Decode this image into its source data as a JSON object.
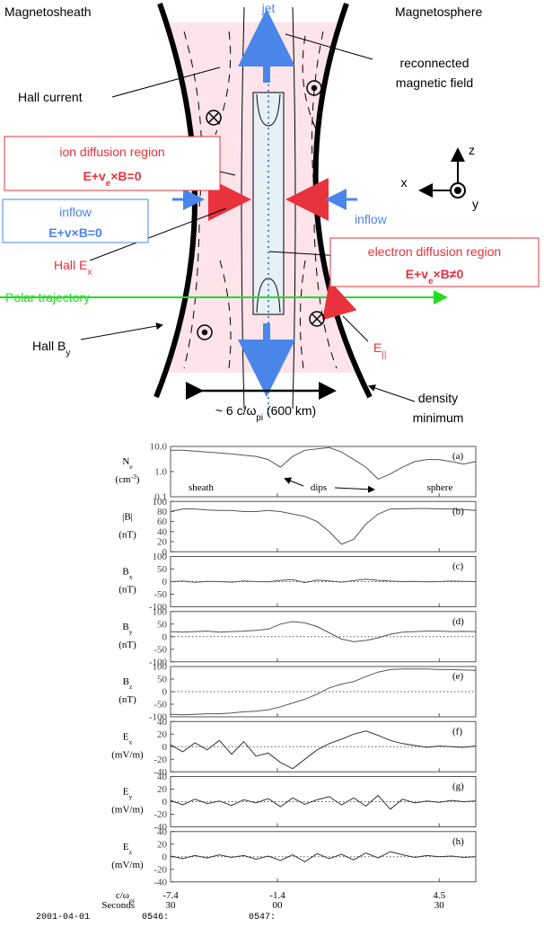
{
  "diagram": {
    "magnetosheath": "Magnetosheath",
    "magnetosphere": "Magnetosphere",
    "jet": "jet",
    "reconnected_field": [
      "reconnected",
      "magnetic field"
    ],
    "hall_current": "Hall current",
    "ion_region": {
      "title": "ion diffusion region",
      "equation": {
        "t": "E+v",
        "sub": "e",
        "post": "×B=0"
      }
    },
    "inflow_left": {
      "title": "inflow",
      "equation": {
        "t": "E+v×B=0"
      }
    },
    "inflow_right": "inflow",
    "hall_ex": {
      "t": "Hall E",
      "sub": "x"
    },
    "electron_region": {
      "title": "electron diffusion region",
      "equation": {
        "t": "E+v",
        "sub": "e",
        "post": "×B≠0"
      }
    },
    "polar_trajectory": "Polar trajectory",
    "hall_by": {
      "t": "Hall B",
      "sub": "y"
    },
    "e_parallel": {
      "t": "E",
      "sub": "||"
    },
    "width": {
      "t": "~ 6 c/ω",
      "sub": "pi",
      "post": " (600 km)"
    },
    "density_minimum": [
      "density",
      "minimum"
    ],
    "axes": {
      "x": "x",
      "y": "y",
      "z": "z"
    }
  },
  "chart_data": [
    {
      "type": "line",
      "tag": "(a)",
      "ylabel": {
        "t": "N",
        "sub": "e"
      },
      "unit": {
        "t": "(cm",
        "sup": "-3",
        "post": ")"
      },
      "log": true,
      "ylim": [
        0.1,
        10
      ],
      "yticks": [
        {
          "value": 0.1,
          "label": "0.1"
        },
        {
          "value": 1,
          "label": "1.0"
        },
        {
          "value": 10,
          "label": "10.0"
        }
      ],
      "xlim": [
        0,
        100
      ],
      "color": "#555555",
      "zero_line": false,
      "annotations": [
        "sheath",
        "dips",
        "sphere"
      ],
      "x": [
        0,
        4,
        8,
        12,
        16,
        20,
        24,
        28,
        32,
        36,
        40,
        44,
        48,
        52,
        56,
        60,
        64,
        68,
        72,
        76,
        80,
        84,
        88,
        92,
        96,
        100
      ],
      "values": [
        7,
        7,
        6.5,
        6,
        5.5,
        5,
        4.5,
        4,
        3,
        1.5,
        4,
        7,
        8,
        9,
        6,
        3,
        1.5,
        0.5,
        0.8,
        1.5,
        2.5,
        3,
        3,
        2.5,
        2,
        2.5
      ]
    },
    {
      "type": "line",
      "tag": "(b)",
      "ylabel": {
        "t": "|B|"
      },
      "unit": "(nT)",
      "ylim": [
        0,
        100
      ],
      "yticks": [
        0,
        20,
        40,
        60,
        80,
        100
      ],
      "xlim": [
        0,
        100
      ],
      "color": "#555555",
      "zero_line": false,
      "x": [
        0,
        4,
        8,
        12,
        16,
        20,
        24,
        28,
        32,
        36,
        40,
        44,
        48,
        52,
        56,
        60,
        64,
        68,
        72,
        76,
        80,
        84,
        88,
        92,
        96,
        100
      ],
      "values": [
        80,
        85,
        85,
        83,
        82,
        82,
        80,
        80,
        82,
        80,
        75,
        70,
        60,
        40,
        15,
        25,
        55,
        75,
        85,
        85,
        86,
        86,
        85,
        85,
        84,
        82
      ]
    },
    {
      "type": "line",
      "tag": "(c)",
      "ylabel": {
        "t": "B",
        "sub": "x"
      },
      "unit": "(nT)",
      "ylim": [
        -100,
        100
      ],
      "yticks": [
        -100,
        -50,
        0,
        50,
        100
      ],
      "xlim": [
        0,
        100
      ],
      "color": "#555555",
      "zero_line": true,
      "x": [
        0,
        4,
        8,
        12,
        16,
        20,
        24,
        28,
        32,
        36,
        40,
        44,
        48,
        52,
        56,
        60,
        64,
        68,
        72,
        76,
        80,
        84,
        88,
        92,
        96,
        100
      ],
      "values": [
        0,
        2,
        -3,
        1,
        0,
        -2,
        3,
        0,
        -1,
        5,
        8,
        -4,
        6,
        3,
        -2,
        4,
        10,
        5,
        2,
        0,
        1,
        -1,
        0,
        2,
        1,
        0
      ]
    },
    {
      "type": "line",
      "tag": "(d)",
      "ylabel": {
        "t": "B",
        "sub": "y"
      },
      "unit": "(nT)",
      "ylim": [
        -100,
        100
      ],
      "yticks": [
        -100,
        -50,
        0,
        50,
        100
      ],
      "xlim": [
        0,
        100
      ],
      "color": "#555555",
      "zero_line": true,
      "x": [
        0,
        4,
        8,
        12,
        16,
        20,
        24,
        28,
        32,
        36,
        40,
        44,
        48,
        52,
        56,
        60,
        64,
        68,
        72,
        76,
        80,
        84,
        88,
        92,
        96,
        100
      ],
      "values": [
        20,
        18,
        20,
        22,
        18,
        20,
        22,
        25,
        30,
        50,
        60,
        55,
        40,
        15,
        -10,
        -20,
        -15,
        -5,
        10,
        18,
        20,
        22,
        22,
        20,
        21,
        20
      ]
    },
    {
      "type": "line",
      "tag": "(e)",
      "ylabel": {
        "t": "B",
        "sub": "z"
      },
      "unit": "(nT)",
      "ylim": [
        -100,
        100
      ],
      "yticks": [
        -100,
        -50,
        0,
        50,
        100
      ],
      "xlim": [
        0,
        100
      ],
      "color": "#555555",
      "zero_line": true,
      "x": [
        0,
        4,
        8,
        12,
        16,
        20,
        24,
        28,
        32,
        36,
        40,
        44,
        48,
        52,
        56,
        60,
        64,
        68,
        72,
        76,
        80,
        84,
        88,
        92,
        96,
        100
      ],
      "values": [
        -90,
        -92,
        -90,
        -88,
        -88,
        -85,
        -80,
        -78,
        -72,
        -60,
        -45,
        -30,
        -10,
        15,
        30,
        40,
        60,
        78,
        88,
        90,
        90,
        90,
        88,
        88,
        86,
        85
      ]
    },
    {
      "type": "line",
      "tag": "(f)",
      "ylabel": {
        "t": "E",
        "sub": "x"
      },
      "unit": "(mV/m)",
      "ylim": [
        -40,
        40
      ],
      "yticks": [
        -40,
        -20,
        0,
        20,
        40
      ],
      "xlim": [
        0,
        100
      ],
      "color": "#333333",
      "zero_line": true,
      "x": [
        0,
        4,
        8,
        12,
        16,
        20,
        24,
        28,
        32,
        36,
        40,
        44,
        48,
        52,
        56,
        60,
        64,
        68,
        72,
        76,
        80,
        84,
        88,
        92,
        96,
        100
      ],
      "values": [
        3,
        -8,
        6,
        -5,
        10,
        -12,
        8,
        -15,
        -10,
        -25,
        -35,
        -20,
        -5,
        5,
        12,
        20,
        25,
        18,
        10,
        5,
        2,
        -1,
        1,
        0,
        -1,
        1
      ]
    },
    {
      "type": "line",
      "tag": "(g)",
      "ylabel": {
        "t": "E",
        "sub": "y"
      },
      "unit": "(mV/m)",
      "ylim": [
        -40,
        40
      ],
      "yticks": [
        -40,
        -20,
        0,
        20,
        40
      ],
      "xlim": [
        0,
        100
      ],
      "color": "#333333",
      "zero_line": true,
      "x": [
        0,
        4,
        8,
        12,
        16,
        20,
        24,
        28,
        32,
        36,
        40,
        44,
        48,
        52,
        56,
        60,
        64,
        68,
        72,
        76,
        80,
        84,
        88,
        92,
        96,
        100
      ],
      "values": [
        2,
        -5,
        4,
        -3,
        1,
        -6,
        3,
        -2,
        5,
        -8,
        6,
        -4,
        3,
        8,
        -5,
        6,
        -7,
        10,
        -12,
        4,
        -2,
        1,
        -1,
        2,
        0,
        1
      ]
    },
    {
      "type": "line",
      "tag": "(h)",
      "ylabel": {
        "t": "E",
        "sub": "z"
      },
      "unit": "(mV/m)",
      "ylim": [
        -40,
        40
      ],
      "yticks": [
        -40,
        -20,
        0,
        20,
        40
      ],
      "xlim": [
        0,
        100
      ],
      "color": "#333333",
      "zero_line": true,
      "x": [
        0,
        4,
        8,
        12,
        16,
        20,
        24,
        28,
        32,
        36,
        40,
        44,
        48,
        52,
        56,
        60,
        64,
        68,
        72,
        76,
        80,
        84,
        88,
        92,
        96,
        100
      ],
      "values": [
        1,
        -3,
        2,
        -2,
        3,
        -1,
        2,
        -4,
        1,
        -6,
        3,
        -8,
        5,
        -3,
        4,
        -5,
        6,
        -2,
        8,
        3,
        -1,
        2,
        0,
        1,
        -1,
        0
      ]
    }
  ],
  "time_axis": {
    "rows": [
      {
        "label": {
          "t": "c/ω",
          "sub": "pi"
        },
        "ticks": [
          {
            "value": 0,
            "label": "-7.4"
          },
          {
            "value": 35,
            "label": "-1.4"
          },
          {
            "value": 88,
            "label": "4.5"
          }
        ]
      },
      {
        "label": "Seconds",
        "ticks": [
          {
            "value": 0,
            "label": "30"
          },
          {
            "value": 35,
            "label": "00"
          },
          {
            "value": 88,
            "label": "30"
          }
        ]
      },
      {
        "label": "2001-04-01",
        "ticks": [
          {
            "value": 0,
            "label": "0546:"
          },
          {
            "value": 35,
            "label": "0547:"
          }
        ]
      }
    ]
  }
}
